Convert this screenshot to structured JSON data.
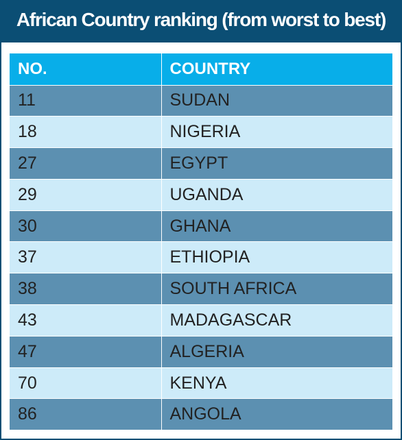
{
  "title": "African Country ranking (from worst to best)",
  "table": {
    "headers": [
      "NO.",
      "COUNTRY"
    ],
    "rows": [
      {
        "no": "11",
        "country": "SUDAN"
      },
      {
        "no": "18",
        "country": "NIGERIA"
      },
      {
        "no": "27",
        "country": "EGYPT"
      },
      {
        "no": "29",
        "country": "UGANDA"
      },
      {
        "no": "30",
        "country": "GHANA"
      },
      {
        "no": "37",
        "country": "ETHIOPIA"
      },
      {
        "no": "38",
        "country": "SOUTH AFRICA"
      },
      {
        "no": "43",
        "country": "MADAGASCAR"
      },
      {
        "no": "47",
        "country": "ALGERIA"
      },
      {
        "no": "70",
        "country": "KENYA"
      },
      {
        "no": "86",
        "country": "ANGOLA"
      }
    ]
  },
  "colors": {
    "background": "#0b4e74",
    "header": "#08aee9",
    "row_dark": "#5c90b1",
    "row_light": "#cdebf9"
  }
}
